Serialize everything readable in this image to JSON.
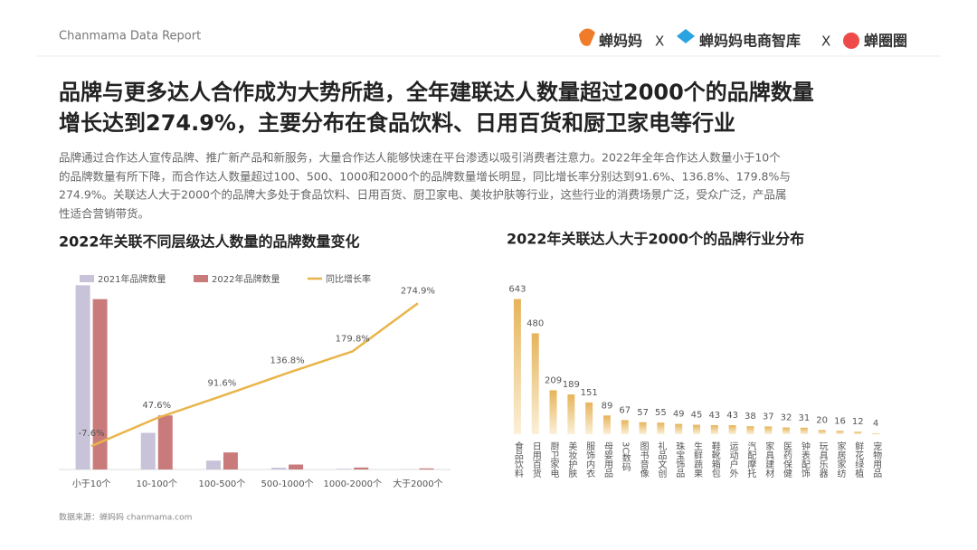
{
  "header": {
    "report": "Chanmama Data Report",
    "logos": [
      "蝉妈妈",
      "X",
      "蝉妈妈电商智库",
      "X",
      "蝉圈圈"
    ]
  },
  "title": [
    "品牌与更多达人合作成为大势所趋，全年建联达人数量超过2000个的品牌数量",
    "增长达到274.9%，主要分布在食品饮料、日用百货和厨卫家电等行业"
  ],
  "paragraph": [
    "品牌通过合作达人宣传品牌、推广新产品和新服务，大量合作达人能够快速在平台渗透以吸引消费者注意力。2022年全年合作达人数量小于10个",
    "的品牌数量有所下降，而合作达人数量超过100、500、1000和2000个的品牌数量增长明显，同比增长率分别达到91.6%、136.8%、179.8%与",
    "274.9%。关联达人大于2000个的品牌大多处于食品饮料、日用百货、厨卫家电、美妆护肤等行业，这些行业的消费场景广泛，受众广泛，产品属",
    "性适合营销带货。"
  ],
  "source": "数据来源：蝉妈妈 chanmama.com",
  "chart_data": [
    {
      "type": "bar_line",
      "title": "2022年关联不同层级达人数量的品牌数量变化",
      "categories": [
        "小于10个",
        "10-100个",
        "100-500个",
        "500-1000个",
        "1000-2000个",
        "大于2000个"
      ],
      "series": [
        {
          "name": "2021年品牌数量",
          "color": "#c8c3d8",
          "values": [
            186,
            37,
            9,
            1.8,
            0.7,
            0.3
          ]
        },
        {
          "name": "2022年品牌数量",
          "color": "#c97b7b",
          "values": [
            172,
            54.6,
            17.2,
            5,
            2,
            1.1
          ]
        },
        {
          "name": "同比增长率",
          "color": "#e9b449",
          "axis": "y2",
          "values": [
            -7.6,
            47.6,
            91.6,
            136.8,
            179.8,
            274.9
          ],
          "value_labels": [
            "-7.6%",
            "47.6%",
            "91.6%",
            "136.8%",
            "179.8%",
            "274.9%"
          ]
        }
      ],
      "ylim": [
        0,
        200
      ],
      "y2lim": [
        -54,
        338
      ],
      "legend": "top-left"
    },
    {
      "type": "bar",
      "title": "2022年关联达人大于2000个的品牌行业分布",
      "categories": [
        "食品饮料",
        "日用百货",
        "厨卫家电",
        "美妆护肤",
        "服饰内衣",
        "母婴用品",
        "3C数码",
        "图书音像",
        "礼品文创",
        "珠宝饰品",
        "生鲜蔬果",
        "鞋靴箱包",
        "运动户外",
        "汽配摩托",
        "家具建材",
        "医药保健",
        "钟表配饰",
        "玩具乐器",
        "家居家纺",
        "鲜花绿植",
        "宠物用品"
      ],
      "values": [
        643,
        480,
        209,
        189,
        151,
        89,
        67,
        57,
        55,
        49,
        45,
        43,
        43,
        38,
        37,
        32,
        31,
        20,
        16,
        12,
        4
      ],
      "color": "#e6b45a",
      "ylim": [
        0,
        680
      ]
    }
  ]
}
